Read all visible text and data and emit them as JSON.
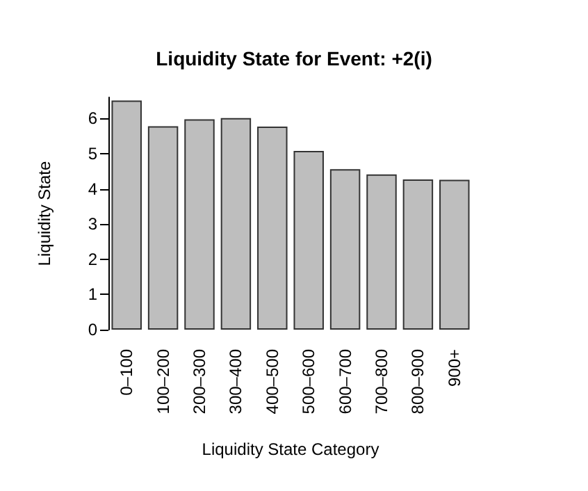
{
  "chart_data": {
    "type": "bar",
    "title": "Liquidity State for Event: +2(i)",
    "xlabel": "Liquidity State Category",
    "ylabel": "Liquidity State",
    "categories": [
      "0–100",
      "100–200",
      "200–300",
      "300–400",
      "400–500",
      "500–600",
      "600–700",
      "700–800",
      "800–900",
      "900+"
    ],
    "values": [
      6.51,
      5.78,
      5.98,
      6.01,
      5.77,
      5.08,
      4.56,
      4.41,
      4.27,
      4.26
    ],
    "color": "#bebebe",
    "ylim": [
      0,
      6.6
    ],
    "yticks": [
      0,
      1,
      2,
      3,
      4,
      5,
      6
    ],
    "grid": false
  }
}
